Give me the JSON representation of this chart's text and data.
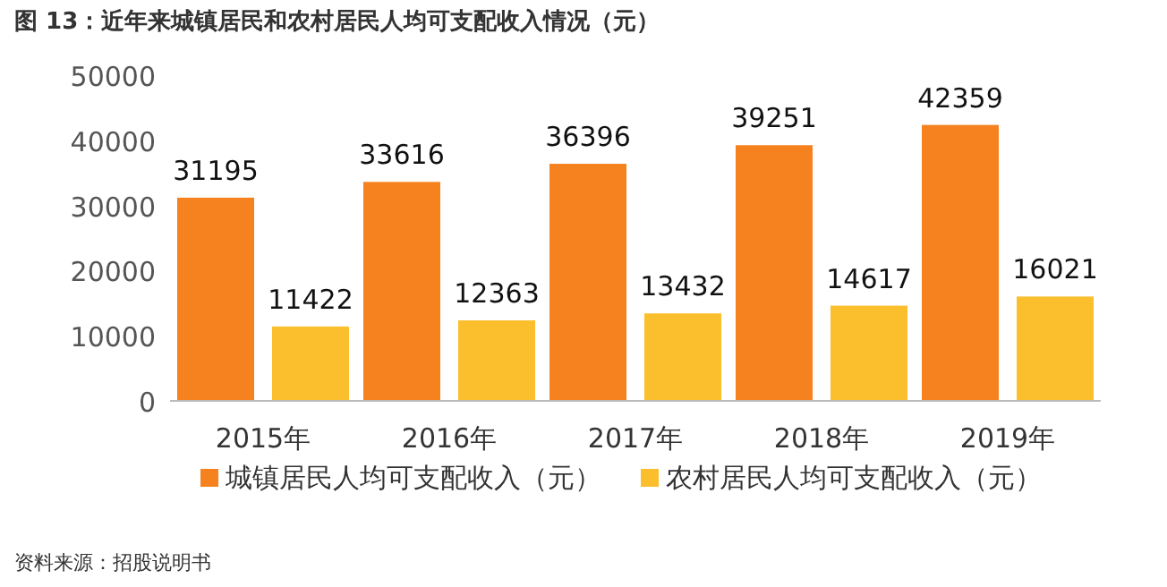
{
  "chart_data": {
    "type": "bar",
    "title": "图 13：近年来城镇居民和农村居民人均可支配收入情况（元）",
    "categories": [
      "2015年",
      "2016年",
      "2017年",
      "2018年",
      "2019年"
    ],
    "series": [
      {
        "name": "城镇居民人均可支配收入（元）",
        "color": "#f5821f",
        "values": [
          31195,
          33616,
          36396,
          39251,
          42359
        ]
      },
      {
        "name": "农村居民人均可支配收入（元）",
        "color": "#fbbf2d",
        "values": [
          11422,
          12363,
          13432,
          14617,
          16021
        ]
      }
    ],
    "ylim": [
      0,
      50000
    ],
    "yticks": [
      0,
      10000,
      20000,
      30000,
      40000,
      50000
    ],
    "data_labels": true,
    "legend": "bottom",
    "grid": false,
    "annotations": [
      "资料来源：招股说明书"
    ]
  }
}
